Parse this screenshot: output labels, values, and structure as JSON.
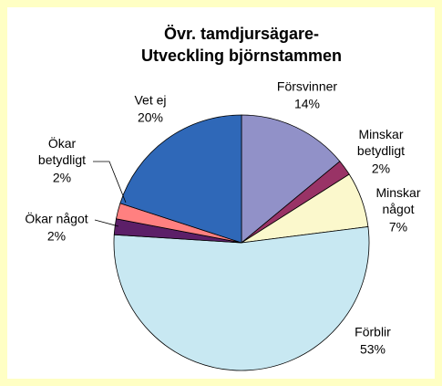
{
  "chart_data": {
    "type": "pie",
    "title": [
      "Övr. tamdjursägare-",
      "Utveckling björnstammen"
    ],
    "categories": [
      "Försvinner",
      "Minskar betydligt",
      "Minskar något",
      "Förblir",
      "Ökar något",
      "Ökar betydligt",
      "Vet ej"
    ],
    "values": [
      14,
      2,
      7,
      53,
      2,
      2,
      20
    ],
    "value_labels": [
      "14%",
      "2%",
      "7%",
      "53%",
      "2%",
      "2%",
      "20%"
    ],
    "colors": [
      "#9191c8",
      "#993366",
      "#fbf8cc",
      "#c8e8f2",
      "#5c1f68",
      "#ff8080",
      "#2f68b8"
    ]
  }
}
